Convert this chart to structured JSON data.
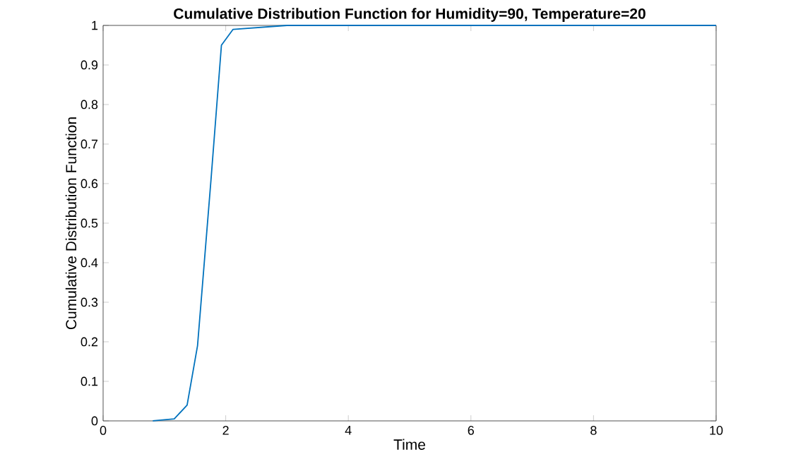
{
  "chart_data": {
    "type": "line",
    "title": "Cumulative Distribution Function for Humidity=90, Temperature=20",
    "xlabel": "Time",
    "ylabel": "Cumulative Distribution Function",
    "x": [
      0.81,
      1.16,
      1.37,
      1.54,
      1.76,
      1.93,
      2.12,
      3,
      5,
      10
    ],
    "series": [
      {
        "color": "#0072bd",
        "values": [
          0,
          0.005,
          0.04,
          0.19,
          0.61,
          0.95,
          0.99,
          1,
          1,
          1
        ]
      }
    ],
    "xlim": [
      0,
      10
    ],
    "ylim": [
      0,
      1
    ],
    "xticks": [
      0,
      2,
      4,
      6,
      8,
      10
    ],
    "yticks": [
      0,
      0.1,
      0.2,
      0.3,
      0.4,
      0.5,
      0.6,
      0.7,
      0.8,
      0.9,
      1
    ],
    "grid": false,
    "marker": "none",
    "line_style": "solid"
  }
}
